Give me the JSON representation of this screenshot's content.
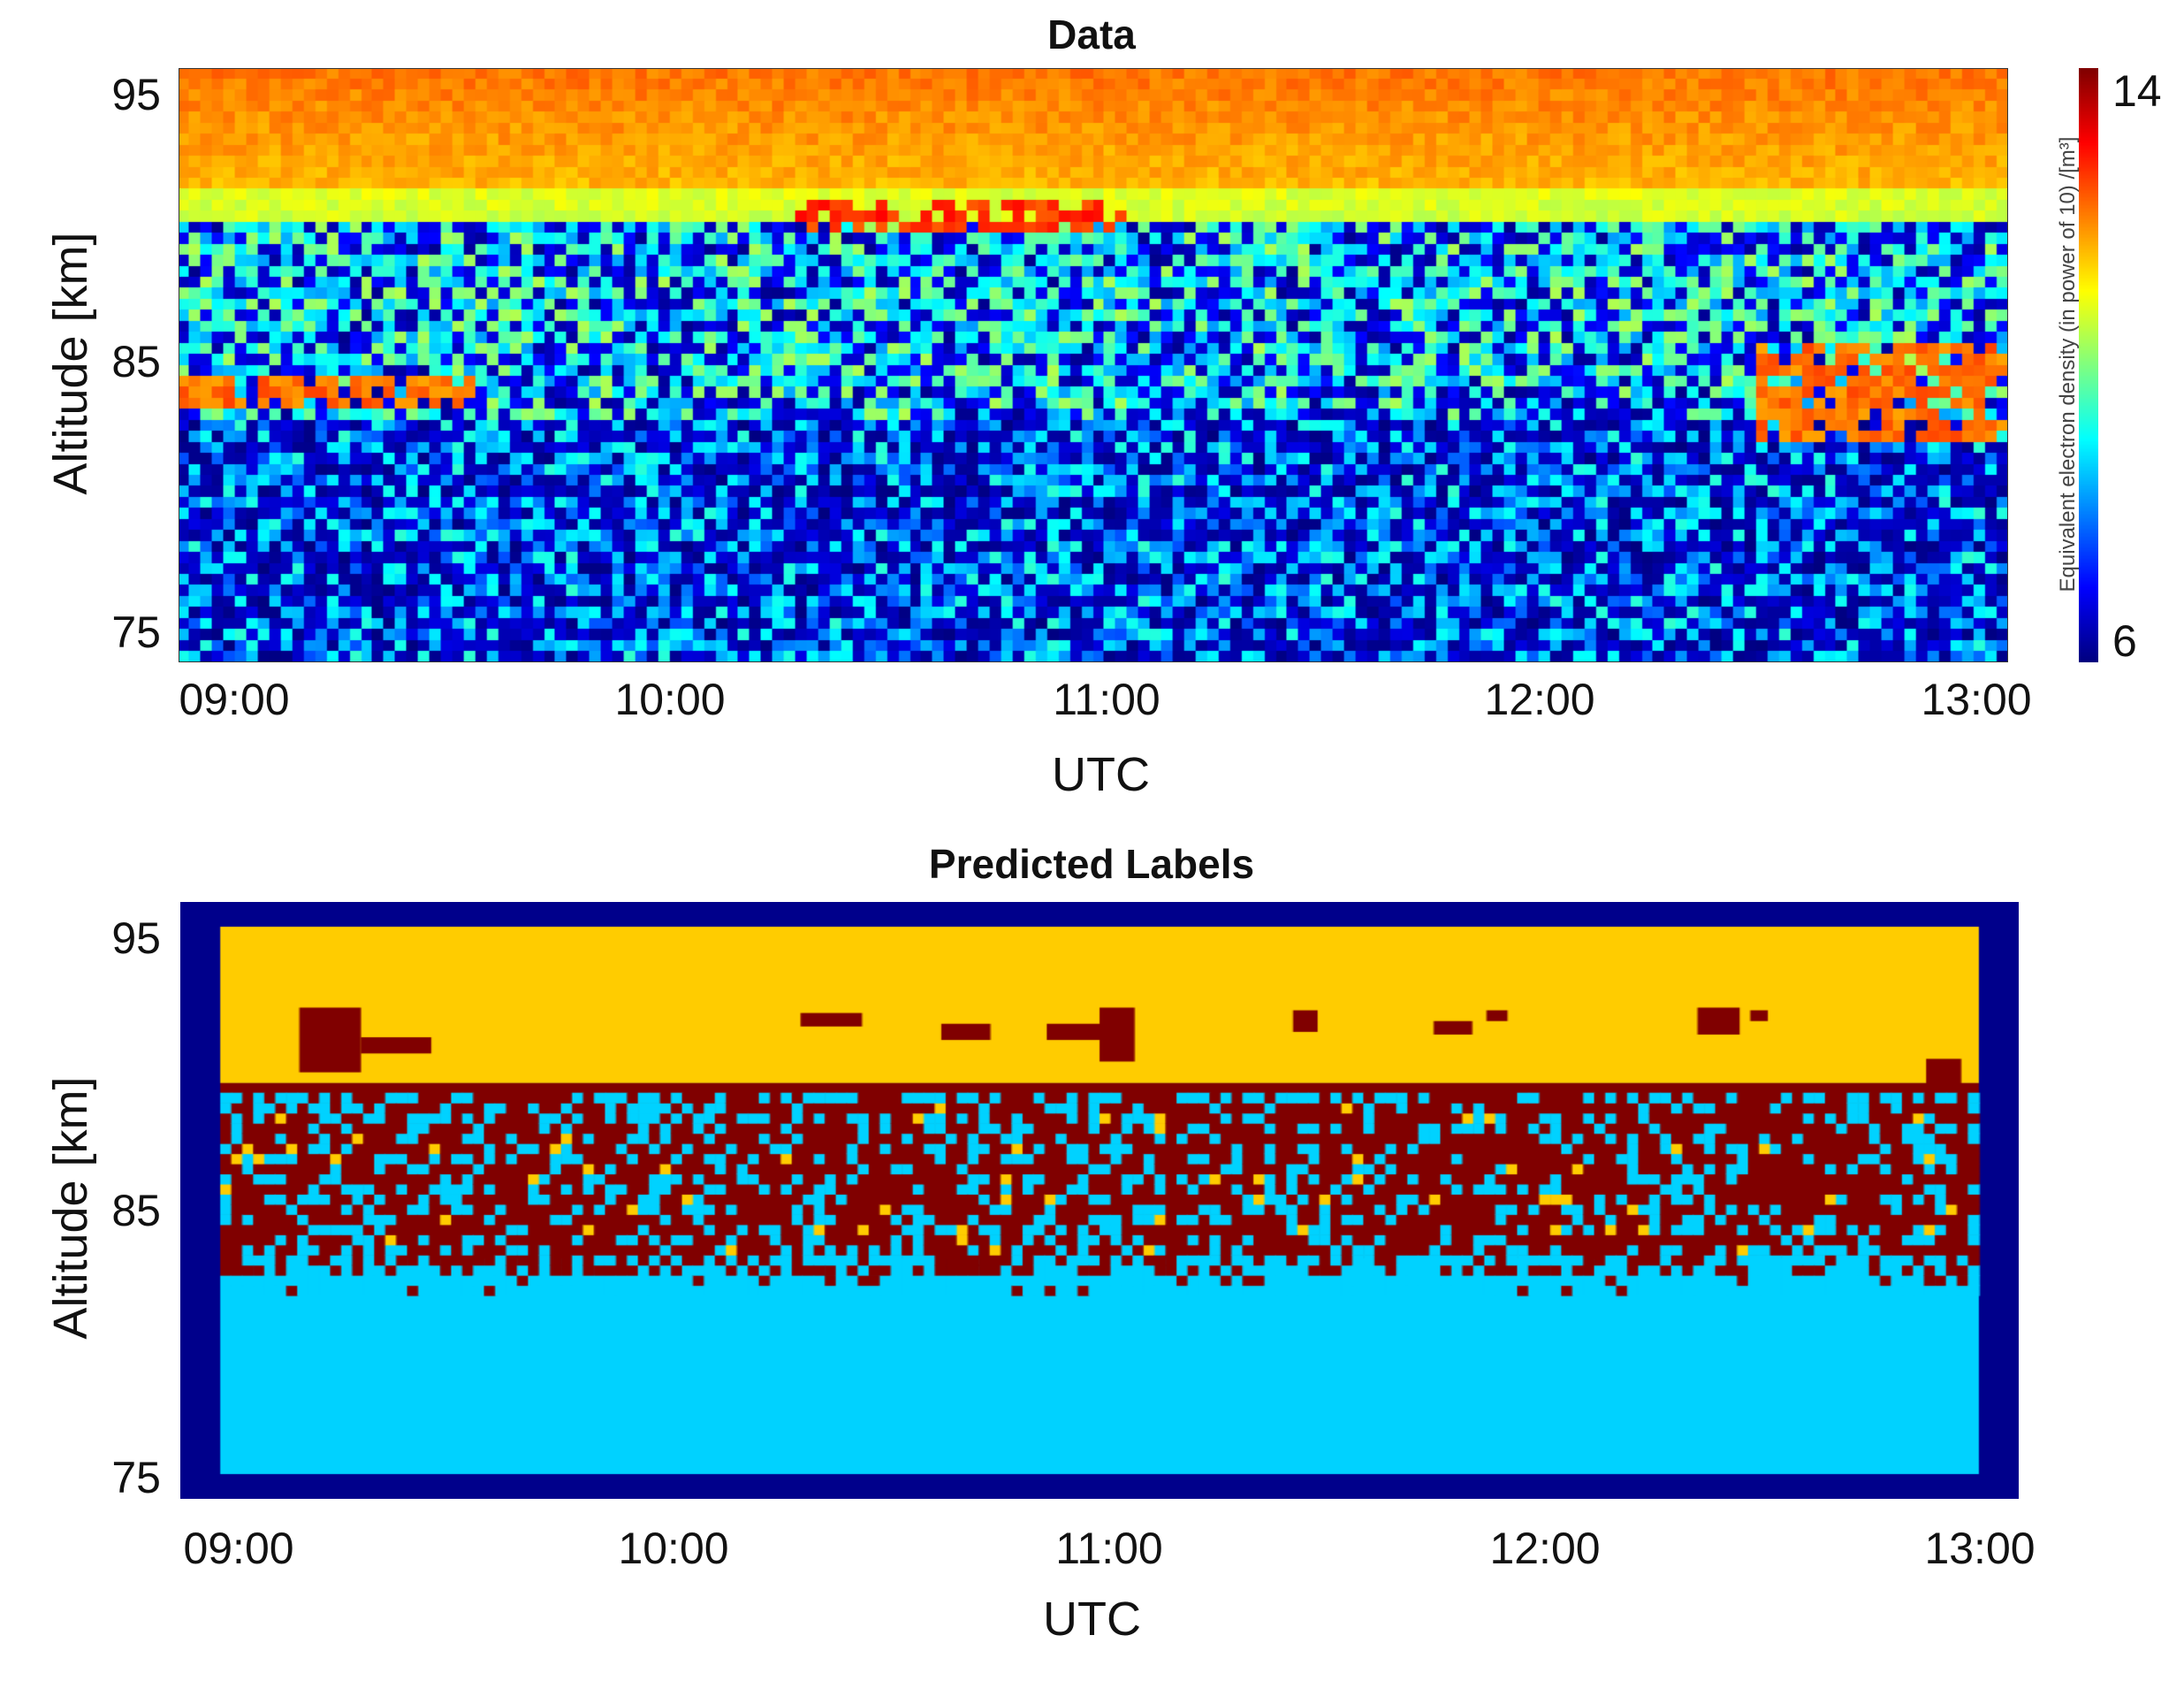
{
  "chart_data": [
    {
      "type": "heatmap",
      "title": "Data",
      "xlabel": "UTC",
      "ylabel": "Altitude [km]",
      "xticks": [
        "09:00",
        "10:00",
        "11:00",
        "12:00",
        "13:00"
      ],
      "xlim": [
        "08:55",
        "13:05"
      ],
      "yticks": [
        95,
        85,
        75
      ],
      "ylim": [
        74,
        96
      ],
      "colorbar": {
        "label": "Equivalent electron density (in power of 10) /[m³]",
        "min": 6,
        "max": 14,
        "colormap": "jet",
        "tick_labels": [
          "14",
          "6"
        ]
      },
      "description_values": {
        "upper_layer_km": [
          90.5,
          96
        ],
        "upper_layer_level": 11.5,
        "background_level_range": [
          6,
          9.5
        ],
        "enhanced_layers": [
          {
            "time_range": [
              "08:55",
              "09:35"
            ],
            "altitude_km": [
              83.5,
              84.5
            ],
            "level": 12.5
          },
          {
            "time_range": [
              "12:30",
              "13:05"
            ],
            "altitude_km": [
              82,
              86
            ],
            "level": 12.5
          },
          {
            "time_range": [
              "10:20",
              "11:05"
            ],
            "altitude_km": [
              90,
              91
            ],
            "level": 13
          }
        ]
      }
    },
    {
      "type": "heatmap",
      "title": "Predicted Labels",
      "xlabel": "UTC",
      "ylabel": "Altitude [km]",
      "xticks": [
        "09:00",
        "10:00",
        "11:00",
        "12:00",
        "13:00"
      ],
      "xlim": [
        "08:55",
        "13:05"
      ],
      "yticks": [
        95,
        85,
        75
      ],
      "ylim": [
        74,
        96
      ],
      "classes": [
        {
          "color": "#ffcc00",
          "altitude_km": [
            89.5,
            95.3
          ]
        },
        {
          "color": "#800000",
          "altitude_km": [
            81.5,
            89.5
          ]
        },
        {
          "color": "#00d2ff",
          "altitude_km": [
            75,
            82
          ]
        }
      ],
      "frame_color": "#00008b"
    }
  ],
  "colors": {
    "label_yellow": "#ffcc00",
    "label_darkred": "#800000",
    "label_cyan": "#00d2ff",
    "label_frame": "#00008b"
  }
}
